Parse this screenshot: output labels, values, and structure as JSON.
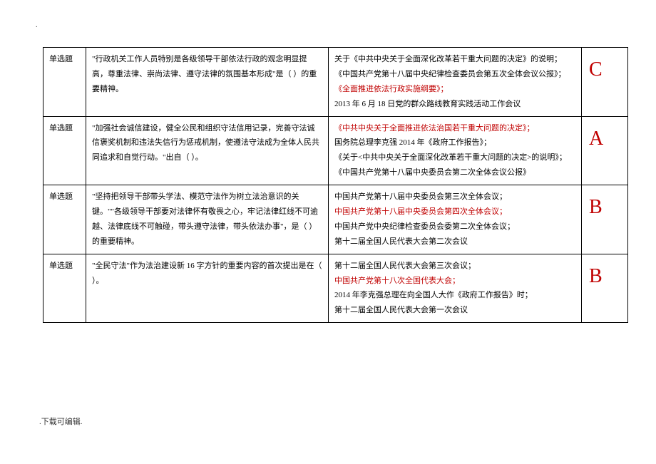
{
  "page": {
    "top_mark": ".",
    "footer": ".下载可编辑."
  },
  "columns": {
    "type_width": 60,
    "question_width": 340,
    "options_width": 355,
    "answer_width": 65
  },
  "colors": {
    "text": "#000000",
    "highlight": "#c00000",
    "answer": "#c00000",
    "border": "#000000",
    "background": "#ffffff"
  },
  "fonts": {
    "body_family": "SimSun",
    "body_size_pt": 11,
    "answer_family": "Times New Roman",
    "answer_size_pt": 28
  },
  "rows": [
    {
      "type": "单选题",
      "question": "\"行政机关工作人员特别是各级领导干部依法行政的观念明显提高，尊重法律、崇尚法律、遵守法律的氛围基本形成\"是（ ）的重要精神。",
      "options": [
        {
          "text": "关于《中共中央关于全面深化改革若干重大问题的决定》的说明；",
          "red": false
        },
        {
          "text": "《中国共产党第十八届中央纪律检查委员会第五次全体会议公报》；",
          "red": false
        },
        {
          "text": "《全面推进依法行政实施纲要》；",
          "red": true
        },
        {
          "text": "2013 年 6 月 18 日党的群众路线教育实践活动工作会议",
          "red": false
        }
      ],
      "answer": "C"
    },
    {
      "type": "单选题",
      "question": "\"加强社会诚信建设，健全公民和组织守法信用记录，完善守法诚信褒奖机制和违法失信行为惩戒机制，使遵法守法成为全体人民共同追求和自觉行动。\"出自（  ）。",
      "options": [
        {
          "text": "《中共中央关于全面推进依法治国若干重大问题的决定》；",
          "red": true
        },
        {
          "text": "国务院总理李克强 2014 年《政府工作报告》；",
          "red": false
        },
        {
          "text": "《关于<中共中央关于全面深化改革若干重大问题的决定>的说明》；",
          "red": false
        },
        {
          "text": "《中国共产党第十八届中央委员会第二次全体会议公报》",
          "red": false
        }
      ],
      "answer": "A"
    },
    {
      "type": "单选题",
      "question": "\"坚持把领导干部带头学法、模范守法作为树立法治意识的关键。\"\"各级领导干部要对法律怀有敬畏之心，牢记法律红线不可逾越、法律底线不可触碰，带头遵守法律，带头依法办事\"，是（  ）的重要精神。",
      "options": [
        {
          "text": "中国共产党第十八届中央委员会第三次全体会议；",
          "red": false
        },
        {
          "text": "中国共产党第十八届中央委员会第四次全体会议；",
          "red": true
        },
        {
          "text": "中国共产党中央纪律检查委员会委第二次全体会议；",
          "red": false
        },
        {
          "text": "第十二届全国人民代表大会第二次会议",
          "red": false
        }
      ],
      "answer": "B"
    },
    {
      "type": "单选题",
      "question": "\"全民守法\"作为法治建设新 16 字方针的重要内容的首次提出是在（  ）。",
      "options": [
        {
          "text": "第十二届全国人民代表大会第三次会议；",
          "red": false
        },
        {
          "text": "中国共产党第十八次全国代表大会；",
          "red": true
        },
        {
          "text": "2014 年李克强总理在向全国人大作《政府工作报告》时；",
          "red": false
        },
        {
          "text": "第十二届全国人民代表大会第一次会议",
          "red": false
        }
      ],
      "answer": "B"
    }
  ]
}
